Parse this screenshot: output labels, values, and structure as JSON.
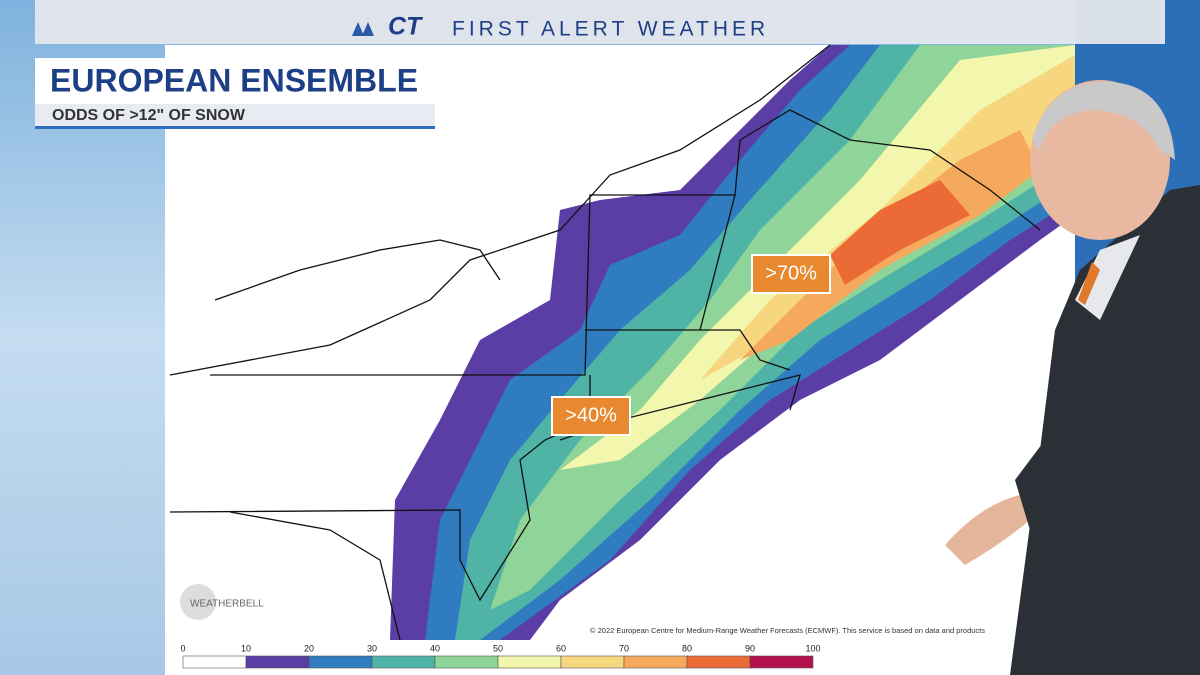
{
  "header": {
    "logo": "CT",
    "title": "FIRST ALERT WEATHER"
  },
  "graphic": {
    "title": "EUROPEAN ENSEMBLE",
    "subtitle": "ODDS OF >12\" OF SNOW"
  },
  "annotations": [
    ">70%",
    ">40%"
  ],
  "map": {
    "credit": "© 2022 European Centre for Medium-Range Weather Forecasts (ECMWF). This service is based on data and products",
    "watermark": "WEATHERBELL"
  },
  "legend": {
    "ticks": [
      0,
      10,
      20,
      30,
      40,
      50,
      60,
      70,
      80,
      90,
      100
    ],
    "colors": [
      "#ffffff",
      "#5a3ea6",
      "#2f7dc0",
      "#4fb3a6",
      "#8fd59a",
      "#f3f6ad",
      "#f6d67f",
      "#f5a95c",
      "#ec6a35",
      "#b3124e"
    ]
  }
}
